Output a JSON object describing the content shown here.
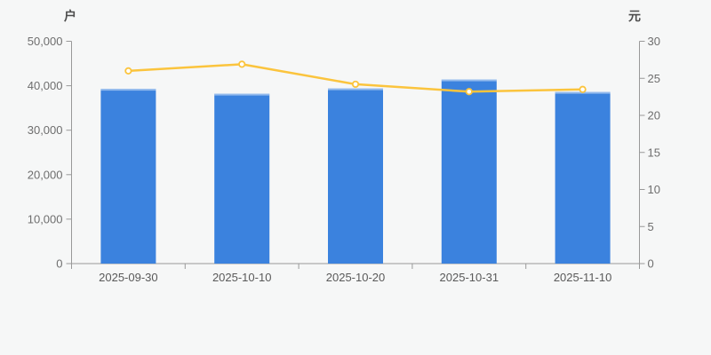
{
  "page": {
    "background": "#f6f7f7"
  },
  "chart_data": {
    "type": "bar",
    "title": "",
    "legend": "none",
    "grid": false,
    "categories": [
      "2025-09-30",
      "2025-10-10",
      "2025-10-20",
      "2025-10-31",
      "2025-11-10"
    ],
    "series": [
      {
        "name": "bar-series",
        "type": "bar",
        "yaxis": "left",
        "color": "#3b82de",
        "values": [
          39300,
          38200,
          39400,
          41400,
          38600
        ]
      },
      {
        "name": "line-series",
        "type": "line",
        "yaxis": "right",
        "color": "#fbc43d",
        "point_fill": "#ffffff",
        "values": [
          26.0,
          26.9,
          24.2,
          23.2,
          23.5
        ]
      }
    ],
    "left_axis": {
      "name": "户",
      "min": 0,
      "max": 50000,
      "step": 10000,
      "tick_labels": [
        "0",
        "10,000",
        "20,000",
        "30,000",
        "40,000",
        "50,000"
      ]
    },
    "right_axis": {
      "name": "元",
      "min": 0,
      "max": 30,
      "step": 5,
      "tick_labels": [
        "0",
        "5",
        "10",
        "15",
        "20",
        "25",
        "30"
      ]
    },
    "colors": {
      "axis_line": "#999999",
      "tick_text": "#6e6e6e",
      "x_label_text": "#595959",
      "axis_name_text": "#4d4d4d"
    }
  }
}
